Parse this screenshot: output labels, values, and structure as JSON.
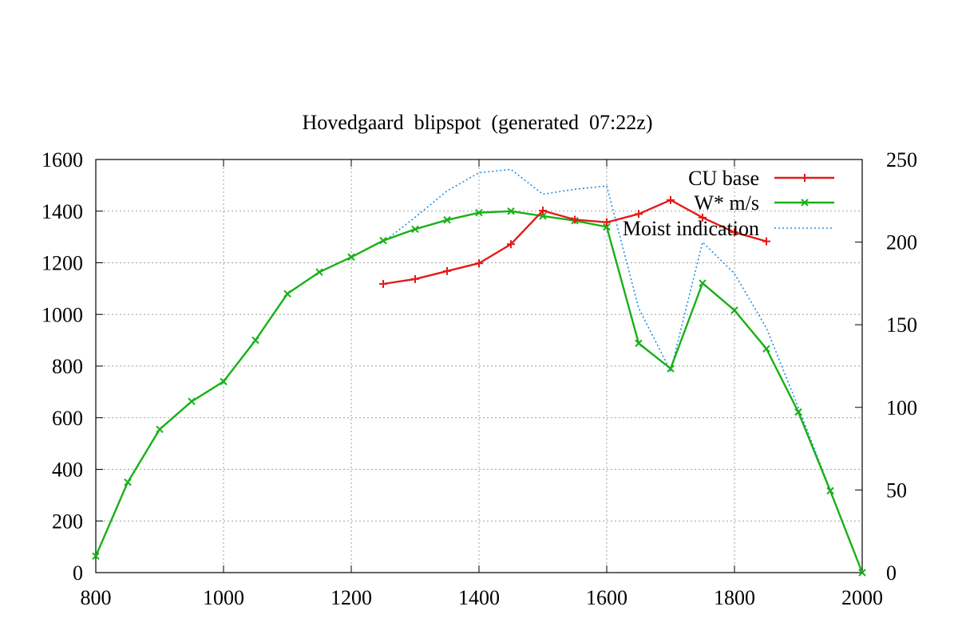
{
  "chart_data": {
    "type": "line",
    "title": "Hovedgaard  blipspot  (generated  07:22z)",
    "xlabel": "",
    "ylabel": "",
    "y2label": "",
    "xlim": [
      800,
      2000
    ],
    "ylim": [
      0,
      1600
    ],
    "y2lim": [
      0,
      250
    ],
    "xticks": [
      800,
      1000,
      1200,
      1400,
      1600,
      1800,
      2000
    ],
    "yticks": [
      0,
      200,
      400,
      600,
      800,
      1000,
      1200,
      1400,
      1600
    ],
    "y2ticks": [
      0,
      50,
      100,
      150,
      200,
      250
    ],
    "grid": true,
    "legend_position": "top-right",
    "series": [
      {
        "name": "CU  base",
        "axis": "left",
        "color": "#e41a1a",
        "style": "solid",
        "marker": "plus",
        "x": [
          1250,
          1300,
          1350,
          1400,
          1450,
          1500,
          1550,
          1600,
          1650,
          1700,
          1750,
          1800,
          1850
        ],
        "values": [
          1118,
          1137,
          1168,
          1198,
          1272,
          1402,
          1367,
          1357,
          1389,
          1443,
          1375,
          1318,
          1283
        ]
      },
      {
        "name": "W*  m/s",
        "axis": "left",
        "color": "#17b117",
        "style": "solid",
        "marker": "x",
        "x": [
          800,
          850,
          900,
          950,
          1000,
          1050,
          1100,
          1150,
          1200,
          1250,
          1300,
          1350,
          1400,
          1450,
          1500,
          1550,
          1600,
          1650,
          1700,
          1750,
          1800,
          1850,
          1900,
          1950,
          2000
        ],
        "values": [
          64,
          350,
          555,
          663,
          740,
          900,
          1080,
          1164,
          1222,
          1286,
          1330,
          1366,
          1394,
          1400,
          1381,
          1363,
          1339,
          888,
          790,
          1121,
          1016,
          867,
          622,
          317,
          0
        ]
      },
      {
        "name": "Moist  indication",
        "axis": "right",
        "color": "#1e8fe8",
        "style": "dotted",
        "marker": "none",
        "x": [
          1250,
          1300,
          1350,
          1400,
          1450,
          1500,
          1550,
          1600,
          1650,
          1700,
          1750,
          1800,
          1850,
          1900,
          1950,
          2000
        ],
        "values": [
          200,
          215,
          231,
          242,
          244,
          229,
          232,
          234,
          160,
          122,
          200,
          181,
          148,
          100,
          50,
          0
        ]
      }
    ]
  }
}
